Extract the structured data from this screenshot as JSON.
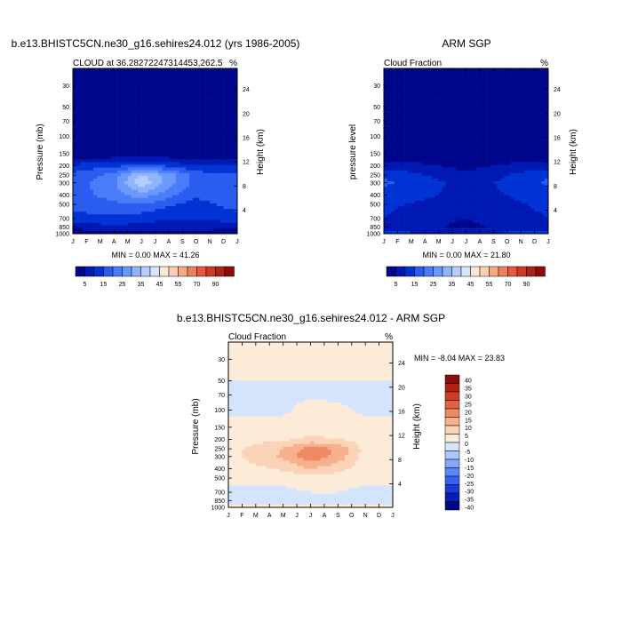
{
  "chart_data": [
    {
      "type": "heatmap",
      "title": "b.e13.BHISTC5CN.ne30_g16.sehires24.012 (yrs 1986-2005)",
      "left_label": "CLOUD at 36.28272247314453,262.5",
      "units": "%",
      "ylabel": "Pressure (mb)",
      "ylabel_right": "Height (km)",
      "x_ticks": [
        "J",
        "F",
        "M",
        "A",
        "M",
        "J",
        "J",
        "A",
        "S",
        "O",
        "N",
        "D",
        "J"
      ],
      "y_ticks": [
        "30",
        "50",
        "70",
        "100",
        "150",
        "200",
        "250",
        "300",
        "400",
        "500",
        "700",
        "850",
        "1000"
      ],
      "y_values": [
        30,
        50,
        70,
        100,
        150,
        200,
        250,
        300,
        400,
        500,
        700,
        850,
        1000
      ],
      "y_range": [
        1000,
        20
      ],
      "height_ticks": [
        "24",
        "20",
        "16",
        "12",
        "8",
        "4"
      ],
      "height_values": [
        24,
        20,
        16,
        12,
        8,
        4
      ],
      "min_max": "MIN =   0.00 MAX =  41.26",
      "min": 0.0,
      "max": 41.26,
      "field": [
        {
          "month": 0,
          "values": [
            0,
            0,
            0,
            0,
            0,
            12,
            16,
            17,
            18,
            17,
            13,
            6,
            2
          ]
        },
        {
          "month": 3,
          "values": [
            0,
            0,
            0,
            0,
            0,
            14,
            22,
            24,
            22,
            19,
            14,
            9,
            3
          ]
        },
        {
          "month": 5,
          "values": [
            0,
            0,
            0,
            0,
            0,
            16,
            36,
            39,
            28,
            20,
            12,
            8,
            3
          ]
        },
        {
          "month": 7,
          "values": [
            0,
            0,
            0,
            0,
            0,
            14,
            28,
            27,
            22,
            16,
            10,
            8,
            3
          ]
        },
        {
          "month": 9,
          "values": [
            0,
            0,
            0,
            0,
            0,
            10,
            18,
            18,
            16,
            13,
            10,
            7,
            3
          ]
        },
        {
          "month": 12,
          "values": [
            0,
            0,
            0,
            0,
            0,
            12,
            16,
            17,
            18,
            17,
            13,
            6,
            2
          ]
        }
      ]
    },
    {
      "type": "heatmap",
      "title": "ARM SGP",
      "left_label": "Cloud Fraction",
      "units": "%",
      "ylabel": "pressure level",
      "ylabel_right": "Height (km)",
      "x_ticks": [
        "J",
        "F",
        "M",
        "A",
        "M",
        "J",
        "J",
        "A",
        "S",
        "O",
        "N",
        "D",
        "J"
      ],
      "y_ticks": [
        "30",
        "50",
        "70",
        "100",
        "150",
        "200",
        "250",
        "300",
        "400",
        "500",
        "700",
        "850",
        "1000"
      ],
      "height_ticks": [
        "24",
        "20",
        "16",
        "12",
        "8",
        "4"
      ],
      "min_max": "MIN =   0.00 MAX =  21.80",
      "min": 0.0,
      "max": 21.8,
      "field": [
        {
          "month": 0,
          "values": [
            0,
            0,
            0,
            0,
            0,
            8,
            14,
            16,
            13,
            11,
            10,
            8,
            12
          ]
        },
        {
          "month": 3,
          "values": [
            0,
            0,
            0,
            0,
            0,
            6,
            10,
            12,
            11,
            9,
            7,
            7,
            10
          ]
        },
        {
          "month": 6,
          "values": [
            0,
            0,
            0,
            0,
            0,
            3,
            6,
            8,
            8,
            7,
            5,
            3,
            8
          ]
        },
        {
          "month": 9,
          "values": [
            0,
            0,
            0,
            0,
            0,
            6,
            10,
            11,
            10,
            9,
            8,
            7,
            11
          ]
        },
        {
          "month": 12,
          "values": [
            0,
            0,
            0,
            0,
            0,
            8,
            14,
            16,
            13,
            11,
            10,
            8,
            12
          ]
        }
      ]
    },
    {
      "type": "heatmap",
      "title": "b.e13.BHISTC5CN.ne30_g16.sehires24.012 - ARM SGP",
      "left_label": "Cloud Fraction",
      "units": "%",
      "ylabel": "Pressure (mb)",
      "ylabel_right": "Height (km)",
      "x_ticks": [
        "J",
        "F",
        "M",
        "A",
        "M",
        "J",
        "J",
        "A",
        "S",
        "O",
        "N",
        "D",
        "J"
      ],
      "y_ticks": [
        "30",
        "50",
        "70",
        "100",
        "150",
        "200",
        "250",
        "300",
        "400",
        "500",
        "700",
        "850",
        "1000"
      ],
      "height_ticks": [
        "24",
        "20",
        "16",
        "12",
        "8",
        "4"
      ],
      "min_max": "MIN =  -8.04 MAX =  23.83",
      "min": -8.04,
      "max": 23.83,
      "field": [
        {
          "month": 0,
          "values": [
            1,
            0,
            -1,
            -1,
            2,
            3,
            3,
            3,
            2,
            1,
            -1,
            -2,
            1
          ]
        },
        {
          "month": 4,
          "values": [
            1,
            0,
            -1,
            -1,
            2,
            4,
            10,
            11,
            6,
            1,
            -1,
            -2,
            1
          ]
        },
        {
          "month": 6,
          "values": [
            1,
            0,
            -1,
            2,
            3,
            6,
            18,
            19,
            10,
            3,
            0,
            -2,
            1
          ]
        },
        {
          "month": 8,
          "values": [
            1,
            0,
            -1,
            1,
            3,
            5,
            14,
            13,
            7,
            2,
            0,
            -2,
            1
          ]
        },
        {
          "month": 10,
          "values": [
            1,
            0,
            -1,
            -1,
            2,
            3,
            3,
            3,
            2,
            1,
            -1,
            -2,
            1
          ]
        },
        {
          "month": 12,
          "values": [
            1,
            0,
            -1,
            -1,
            2,
            3,
            3,
            3,
            2,
            1,
            -1,
            -2,
            1
          ]
        }
      ]
    }
  ],
  "colorbars": {
    "abs": {
      "colors": [
        "#00078b",
        "#0019b3",
        "#0033d6",
        "#2a5cf0",
        "#4a7cfa",
        "#6b98fc",
        "#8fb4fc",
        "#b4cdfc",
        "#d6e4fc",
        "#fde8d7",
        "#fbcdb1",
        "#f7a884",
        "#f0805b",
        "#e45a3a",
        "#cc3b22",
        "#ad2214",
        "#8c0d0b"
      ],
      "labels": [
        "5",
        "15",
        "25",
        "35",
        "45",
        "55",
        "70",
        "90"
      ],
      "levels": [
        0,
        5,
        10,
        15,
        20,
        25,
        30,
        35,
        40,
        45,
        50,
        55,
        60,
        70,
        80,
        90
      ]
    },
    "diff": {
      "colors": [
        "#00078b",
        "#0a1eb5",
        "#1a3ad8",
        "#3561ef",
        "#5b87f8",
        "#84a9fb",
        "#adc7fc",
        "#d4e4fc",
        "#fdebd9",
        "#fbd3b7",
        "#f6b08d",
        "#ef8963",
        "#e26241",
        "#cc3e25",
        "#ad2214",
        "#8c0d0b"
      ],
      "labels": [
        "40",
        "35",
        "30",
        "25",
        "20",
        "15",
        "10",
        "5",
        "0",
        "-5",
        "-10",
        "-15",
        "-20",
        "-25",
        "-30",
        "-35",
        "-40"
      ],
      "levels": [
        -40,
        -35,
        -30,
        -25,
        -20,
        -15,
        -10,
        -5,
        0,
        5,
        10,
        15,
        20,
        25,
        30,
        35,
        40
      ]
    }
  }
}
